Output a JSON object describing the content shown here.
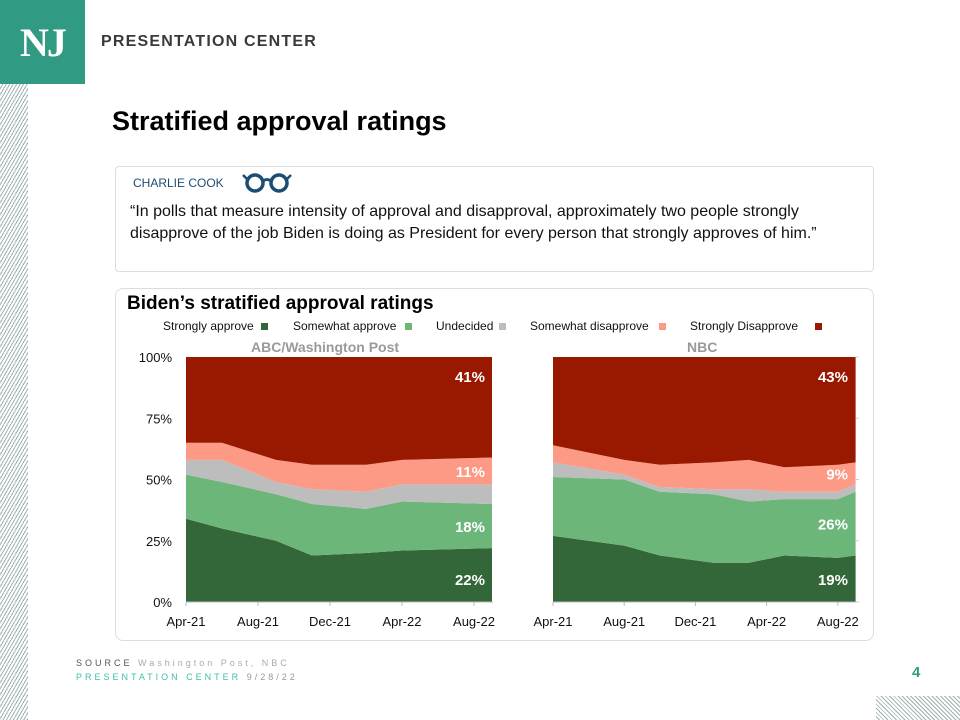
{
  "header": {
    "logo_text": "NJ",
    "brand": "PRESENTATION CENTER"
  },
  "slide_title": "Stratified approval ratings",
  "quote": {
    "author": "CHARLIE COOK",
    "icon": "glasses-icon",
    "text": "“In polls that measure intensity of approval and disapproval, approximately two people strongly disapprove of the job Biden is doing as President for every person that strongly approves of him.”"
  },
  "footer": {
    "source_label": "SOURCE",
    "source_text": "Washington Post, NBC",
    "center_label": "PRESENTATION CENTER",
    "date": "9/28/22",
    "page_number": "4"
  },
  "colors": {
    "Strongly approve": "#336639",
    "Somewhat approve": "#6db67a",
    "Undecided": "#bdbdbd",
    "Somewhat disapprove": "#fd9a86",
    "Strongly Disapprove": "#981800"
  },
  "chart_data": {
    "title": "Biden’s stratified approval ratings",
    "legend": [
      "Strongly approve",
      "Somewhat approve",
      "Undecided",
      "Somewhat disapprove",
      "Strongly Disapprove"
    ],
    "legend_placement": "top",
    "charts": [
      {
        "type": "area",
        "stacked": true,
        "subtitle": "ABC/Washington Post",
        "x": [
          "2021-04",
          "2021-06",
          "2021-09",
          "2021-11",
          "2022-02",
          "2022-04",
          "2022-09"
        ],
        "xticks": [
          "Apr-21",
          "Aug-21",
          "Dec-21",
          "Apr-22",
          "Aug-22"
        ],
        "yticks": [
          "0%",
          "25%",
          "50%",
          "75%",
          "100%"
        ],
        "ylim": [
          0,
          100
        ],
        "series": [
          {
            "name": "Strongly approve",
            "values": [
              34,
              30,
              25,
              19,
              20,
              21,
              22
            ]
          },
          {
            "name": "Somewhat approve",
            "values": [
              18,
              19,
              19,
              21,
              18,
              20,
              18
            ]
          },
          {
            "name": "Undecided",
            "values": [
              6,
              9,
              5,
              6,
              7,
              7,
              8
            ]
          },
          {
            "name": "Somewhat disapprove",
            "values": [
              7,
              7,
              9,
              10,
              11,
              10,
              11
            ]
          },
          {
            "name": "Strongly Disapprove",
            "values": [
              35,
              35,
              42,
              44,
              44,
              42,
              41
            ]
          }
        ],
        "data_labels": {
          "Strongly Disapprove": "41%",
          "Somewhat disapprove": "11%",
          "Somewhat approve": "18%",
          "Strongly approve": "22%"
        }
      },
      {
        "type": "area",
        "stacked": true,
        "subtitle": "NBC",
        "x": [
          "2021-04",
          "2021-08",
          "2021-10",
          "2022-01",
          "2022-03",
          "2022-05",
          "2022-08",
          "2022-09"
        ],
        "xticks": [
          "Apr-21",
          "Aug-21",
          "Dec-21",
          "Apr-22",
          "Aug-22"
        ],
        "ylim": [
          0,
          100
        ],
        "series": [
          {
            "name": "Strongly approve",
            "values": [
              27,
              23,
              19,
              16,
              16,
              19,
              18,
              19
            ]
          },
          {
            "name": "Somewhat approve",
            "values": [
              24,
              27,
              26,
              28,
              25,
              23,
              24,
              26
            ]
          },
          {
            "name": "Undecided",
            "values": [
              6,
              2,
              2,
              2,
              5,
              3,
              3,
              3
            ]
          },
          {
            "name": "Somewhat disapprove",
            "values": [
              7,
              6,
              9,
              11,
              12,
              10,
              11,
              9
            ]
          },
          {
            "name": "Strongly Disapprove",
            "values": [
              36,
              42,
              44,
              43,
              42,
              45,
              44,
              43
            ]
          }
        ],
        "data_labels": {
          "Strongly Disapprove": "43%",
          "Somewhat disapprove": "9%",
          "Somewhat approve": "26%",
          "Strongly approve": "19%"
        }
      }
    ]
  }
}
